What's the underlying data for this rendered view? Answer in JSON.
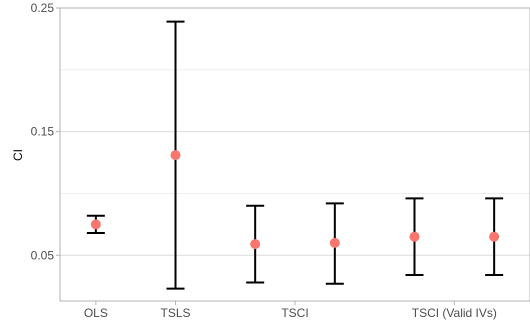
{
  "chart_data": {
    "type": "errorbar",
    "ylabel": "CI",
    "xlabel": "",
    "ylim": [
      0.013,
      0.25
    ],
    "yticks": [
      0.05,
      0.15,
      0.25
    ],
    "ytick_labels": [
      "0.05",
      "0.15",
      "0.25"
    ],
    "categories": [
      "OLS",
      "TSLS",
      "TSCI",
      "TSCI (Valid IVs)"
    ],
    "points": [
      {
        "x": 1.0,
        "estimate": 0.075,
        "lower": 0.068,
        "upper": 0.082
      },
      {
        "x": 2.0,
        "estimate": 0.131,
        "lower": 0.023,
        "upper": 0.239
      },
      {
        "x": 3.0,
        "estimate": 0.059,
        "lower": 0.028,
        "upper": 0.09
      },
      {
        "x": 4.0,
        "estimate": 0.06,
        "lower": 0.027,
        "upper": 0.092
      },
      {
        "x": 5.0,
        "estimate": 0.065,
        "lower": 0.034,
        "upper": 0.096
      },
      {
        "x": 6.0,
        "estimate": 0.065,
        "lower": 0.034,
        "upper": 0.096
      }
    ],
    "category_positions": [
      1.0,
      2.0,
      3.5,
      5.5
    ],
    "xlim": [
      0.55,
      6.45
    ],
    "grid": true,
    "point_color": "#F8766D",
    "bar_color": "#000000"
  }
}
